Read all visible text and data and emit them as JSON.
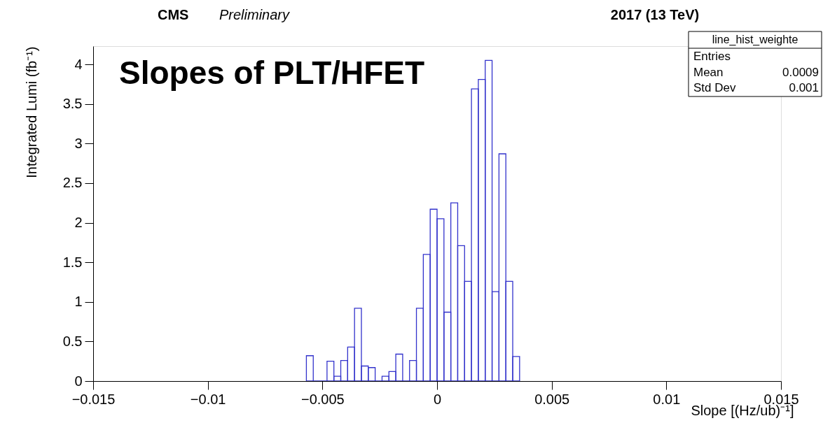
{
  "chart_data": {
    "type": "histogram",
    "title": "CMS",
    "subtitle": "Preliminary",
    "xlabel": "Slope [(Hz/ub)⁻¹]",
    "ylabel": "Integrated Lumi (fb⁻¹)",
    "annotations": [
      "2017 (13 TeV)",
      "Slopes of PLT/HFET",
      "line_hist_weighte",
      "Entries",
      "Mean",
      "0.0009",
      "Std Dev",
      "0.001"
    ],
    "bins": [
      -0.0057,
      -0.0054,
      -0.0051,
      -0.0048,
      -0.0045,
      -0.0042,
      -0.0039,
      -0.0036,
      -0.0033,
      -0.003,
      -0.0027,
      -0.0024,
      -0.0021,
      -0.0018,
      -0.0015,
      -0.0012,
      -0.0009,
      -0.0006,
      -0.0003,
      0,
      0.0003,
      0.0006,
      0.0009,
      0.0012,
      0.0015,
      0.0018,
      0.0021,
      0.0024,
      0.0027,
      0.003,
      0.0033,
      0.0036
    ],
    "series": [
      {
        "color": "#3333cc",
        "values": [
          0.32,
          0,
          0,
          0.25,
          0.06,
          0.26,
          0.43,
          0.92,
          0.19,
          0.17,
          0,
          0.06,
          0.12,
          0.34,
          0,
          0.26,
          0.92,
          1.6,
          2.17,
          2.05,
          0.87,
          2.25,
          1.71,
          1.26,
          3.69,
          3.81,
          4.05,
          1.13,
          2.87,
          1.26,
          0.31
        ]
      }
    ],
    "xlim": [
      -0.015,
      0.015
    ],
    "xticks": [
      {
        "value": -0.015,
        "label": "−0.015"
      },
      {
        "value": -0.01,
        "label": "−0.01"
      },
      {
        "value": -0.005,
        "label": "−0.005"
      },
      0,
      0.005,
      0.01,
      0.015
    ],
    "ylim": [
      0,
      4.23
    ],
    "yticks": [
      0,
      0.5,
      1,
      1.5,
      2,
      2.5,
      3,
      3.5,
      4
    ],
    "grid": false
  }
}
